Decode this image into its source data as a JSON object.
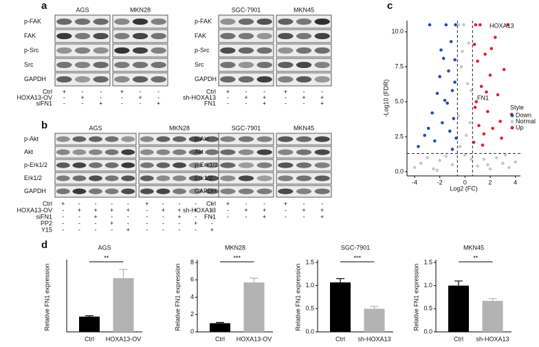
{
  "panels": {
    "a": {
      "label": "a",
      "blots": [
        {
          "cell_lines": [
            "AGS",
            "MKN28"
          ],
          "rows": [
            "p-FAK",
            "FAK",
            "p-Src",
            "Src",
            "GAPDH"
          ],
          "conditions": [
            {
              "name": "Ctrl",
              "marks": [
                "+",
                "-",
                "-",
                "+",
                "-",
                "-"
              ]
            },
            {
              "name": "HOXA13-OV",
              "marks": [
                "-",
                "+",
                "-",
                "-",
                "+",
                "-"
              ]
            },
            {
              "name": "siFN1",
              "marks": [
                "-",
                "-",
                "+",
                "-",
                "-",
                "+"
              ]
            }
          ]
        },
        {
          "cell_lines": [
            "SGC-7901",
            "MKN45"
          ],
          "rows": [
            "p-FAK",
            "FAK",
            "p-Src",
            "Src",
            "GAPDH"
          ],
          "conditions": [
            {
              "name": "Ctrl",
              "marks": [
                "+",
                "-",
                "-",
                "+",
                "-",
                "-"
              ]
            },
            {
              "name": "sh-HOXA13",
              "marks": [
                "-",
                "+",
                "+",
                "-",
                "+",
                "+"
              ]
            },
            {
              "name": "FN1",
              "marks": [
                "-",
                "-",
                "+",
                "-",
                "-",
                "+"
              ]
            }
          ]
        }
      ]
    },
    "b": {
      "label": "b",
      "blots": [
        {
          "cell_lines": [
            "AGS",
            "MKN28"
          ],
          "rows": [
            "p-Akt",
            "Akt",
            "p-Erk1/2",
            "Erk1/2",
            "GAPDH"
          ],
          "conditions": [
            {
              "name": "Ctrl",
              "marks": [
                "+",
                "-",
                "-",
                "-",
                "-",
                "+",
                "-",
                "-",
                "-",
                "-"
              ]
            },
            {
              "name": "HOXA13-OV",
              "marks": [
                "-",
                "+",
                "+",
                "+",
                "+",
                "-",
                "+",
                "+",
                "+",
                "+"
              ]
            },
            {
              "name": "siFN1",
              "marks": [
                "-",
                "-",
                "+",
                "-",
                "-",
                "-",
                "-",
                "+",
                "-",
                "-"
              ]
            },
            {
              "name": "PP2",
              "marks": [
                "-",
                "-",
                "-",
                "+",
                "-",
                "-",
                "-",
                "-",
                "+",
                "-"
              ]
            },
            {
              "name": "Y15",
              "marks": [
                "-",
                "-",
                "-",
                "-",
                "+",
                "-",
                "-",
                "-",
                "-",
                "+"
              ]
            }
          ]
        },
        {
          "cell_lines": [
            "SGC-7901",
            "MKN45"
          ],
          "rows": [
            "p-Akt",
            "Akt",
            "p-Erk1/2",
            "Erk1/2",
            "GAPDH"
          ],
          "conditions": [
            {
              "name": "Ctrl",
              "marks": [
                "+",
                "-",
                "-",
                "+",
                "-",
                "-"
              ]
            },
            {
              "name": "sh-HOXA13",
              "marks": [
                "-",
                "+",
                "+",
                "-",
                "+",
                "+"
              ]
            },
            {
              "name": "FN1",
              "marks": [
                "-",
                "-",
                "+",
                "-",
                "-",
                "+"
              ]
            }
          ]
        }
      ]
    },
    "c": {
      "label": "c"
    },
    "d": {
      "label": "d"
    }
  },
  "chart_data": [
    {
      "type": "scatter",
      "x_label": "Log2 (FC)",
      "y_label": "-Log10 (FDR)",
      "xlim": [
        -4.6,
        4.4
      ],
      "ylim": [
        -0.3,
        10.8
      ],
      "xticks": [
        -4,
        -2,
        0,
        2,
        4
      ],
      "yticks": [
        {
          "value": 0,
          "label": "0.0"
        },
        {
          "value": 2.5,
          "label": "2.5"
        },
        {
          "value": 5,
          "label": "5.0"
        },
        {
          "value": 7.5,
          "label": "7.5"
        },
        {
          "value": 10,
          "label": "10.0"
        }
      ],
      "thresholds": {
        "x": [
          -0.6,
          0.6
        ],
        "y": 1.3
      },
      "legend_title": "Style",
      "legend_position": "right",
      "annotations": [
        "HOXA13",
        "FN1"
      ],
      "series": [
        {
          "name": "Down",
          "color": "#1f4fa8",
          "x": [
            -3.7,
            -3.2,
            -2.9,
            -2.6,
            -2.4,
            -2.2,
            -2.0,
            -1.8,
            -1.7,
            -1.5,
            -1.4,
            -1.3,
            -1.2,
            -1.1,
            -1.0,
            -0.9,
            -0.8,
            -0.75,
            -0.7,
            -1.6,
            -2.8,
            -1.9,
            -1.0,
            -0.8
          ],
          "values": [
            1.8,
            2.6,
            3.1,
            4.2,
            2.2,
            5.6,
            6.8,
            3.5,
            8.1,
            10.5,
            4.9,
            7.2,
            2.9,
            9.3,
            5.8,
            3.8,
            6.4,
            10.5,
            2.4,
            5.1,
            10.5,
            8.7,
            1.6,
            8.0
          ]
        },
        {
          "name": "Normal",
          "color": "#c8c8c8",
          "x": [
            -4.0,
            -3.5,
            -3.0,
            -2.5,
            -2.0,
            -1.5,
            -1.0,
            -0.5,
            -0.3,
            -0.1,
            0.1,
            0.3,
            0.5,
            1.0,
            1.5,
            2.0,
            2.5,
            3.0,
            3.5,
            4.0,
            -0.4,
            0.2,
            0.4,
            -0.2,
            0.0,
            -0.5,
            0.5,
            -2.2,
            1.8,
            3.2
          ],
          "values": [
            0.3,
            0.6,
            1.0,
            0.2,
            0.8,
            1.1,
            0.5,
            4.0,
            7.5,
            10.5,
            2.6,
            9.2,
            5.8,
            0.4,
            0.9,
            0.2,
            1.0,
            0.6,
            0.3,
            0.7,
            1.8,
            6.3,
            3.5,
            8.6,
            1.2,
            10.5,
            0.9,
            0.1,
            0.5,
            1.2
          ]
        },
        {
          "name": "Up",
          "color": "#e0202a",
          "x": [
            0.7,
            0.8,
            0.9,
            1.0,
            1.1,
            1.2,
            1.3,
            1.5,
            1.6,
            1.8,
            2.0,
            2.2,
            2.4,
            2.6,
            2.9,
            3.1,
            3.4,
            3.7,
            0.75,
            1.4,
            0.85,
            2.1,
            1.7,
            2.8
          ],
          "values": [
            2.1,
            4.6,
            5.0,
            7.9,
            3.3,
            10.5,
            6.1,
            2.7,
            8.4,
            4.3,
            6.9,
            3.1,
            9.6,
            5.5,
            2.4,
            7.3,
            10.5,
            4.1,
            9.1,
            1.9,
            10.5,
            8.8,
            5.7,
            3.6
          ]
        }
      ]
    },
    {
      "type": "bar",
      "title": "AGS",
      "y_label": "Relative FN1 expression",
      "categories": [
        "Ctrl",
        "HOXA13-OV"
      ],
      "values": [
        0.88,
        3.1
      ],
      "errors": [
        0.05,
        0.5
      ],
      "colors": [
        "#000000",
        "#b3b3b3"
      ],
      "ylim": [
        0,
        4
      ],
      "significance": "**"
    },
    {
      "type": "bar",
      "title": "MKN28",
      "y_label": "Relative FN1 expression",
      "categories": [
        "Ctrl",
        "HOXA13-OV"
      ],
      "values": [
        1.0,
        5.7
      ],
      "errors": [
        0.08,
        0.5
      ],
      "colors": [
        "#000000",
        "#b3b3b3"
      ],
      "ylim": [
        0,
        8
      ],
      "yticks": [
        0,
        2,
        4,
        6,
        8
      ],
      "significance": "***"
    },
    {
      "type": "bar",
      "title": "SGC-7901",
      "y_label": "Relative FN1 expression",
      "categories": [
        "Ctrl",
        "sh-HOXA13"
      ],
      "values": [
        1.07,
        0.5
      ],
      "errors": [
        0.08,
        0.05
      ],
      "colors": [
        "#000000",
        "#b3b3b3"
      ],
      "ylim": [
        0,
        1.5
      ],
      "yticks": [
        {
          "value": 0,
          "label": "0.0"
        },
        {
          "value": 0.5,
          "label": "0.5"
        },
        {
          "value": 1,
          "label": "1.0"
        },
        {
          "value": 1.5,
          "label": "1.5"
        }
      ],
      "significance": "***"
    },
    {
      "type": "bar",
      "title": "MKN45",
      "y_label": "Relative FN1 expression",
      "categories": [
        "Ctrl",
        "sh-HOXA13"
      ],
      "values": [
        1.0,
        0.67
      ],
      "errors": [
        0.1,
        0.05
      ],
      "colors": [
        "#000000",
        "#b3b3b3"
      ],
      "ylim": [
        0,
        1.5
      ],
      "yticks": [
        {
          "value": 0,
          "label": "0.0"
        },
        {
          "value": 0.5,
          "label": "0.5"
        },
        {
          "value": 1,
          "label": "1.0"
        },
        {
          "value": 1.5,
          "label": "1.5"
        }
      ],
      "significance": "**"
    }
  ]
}
